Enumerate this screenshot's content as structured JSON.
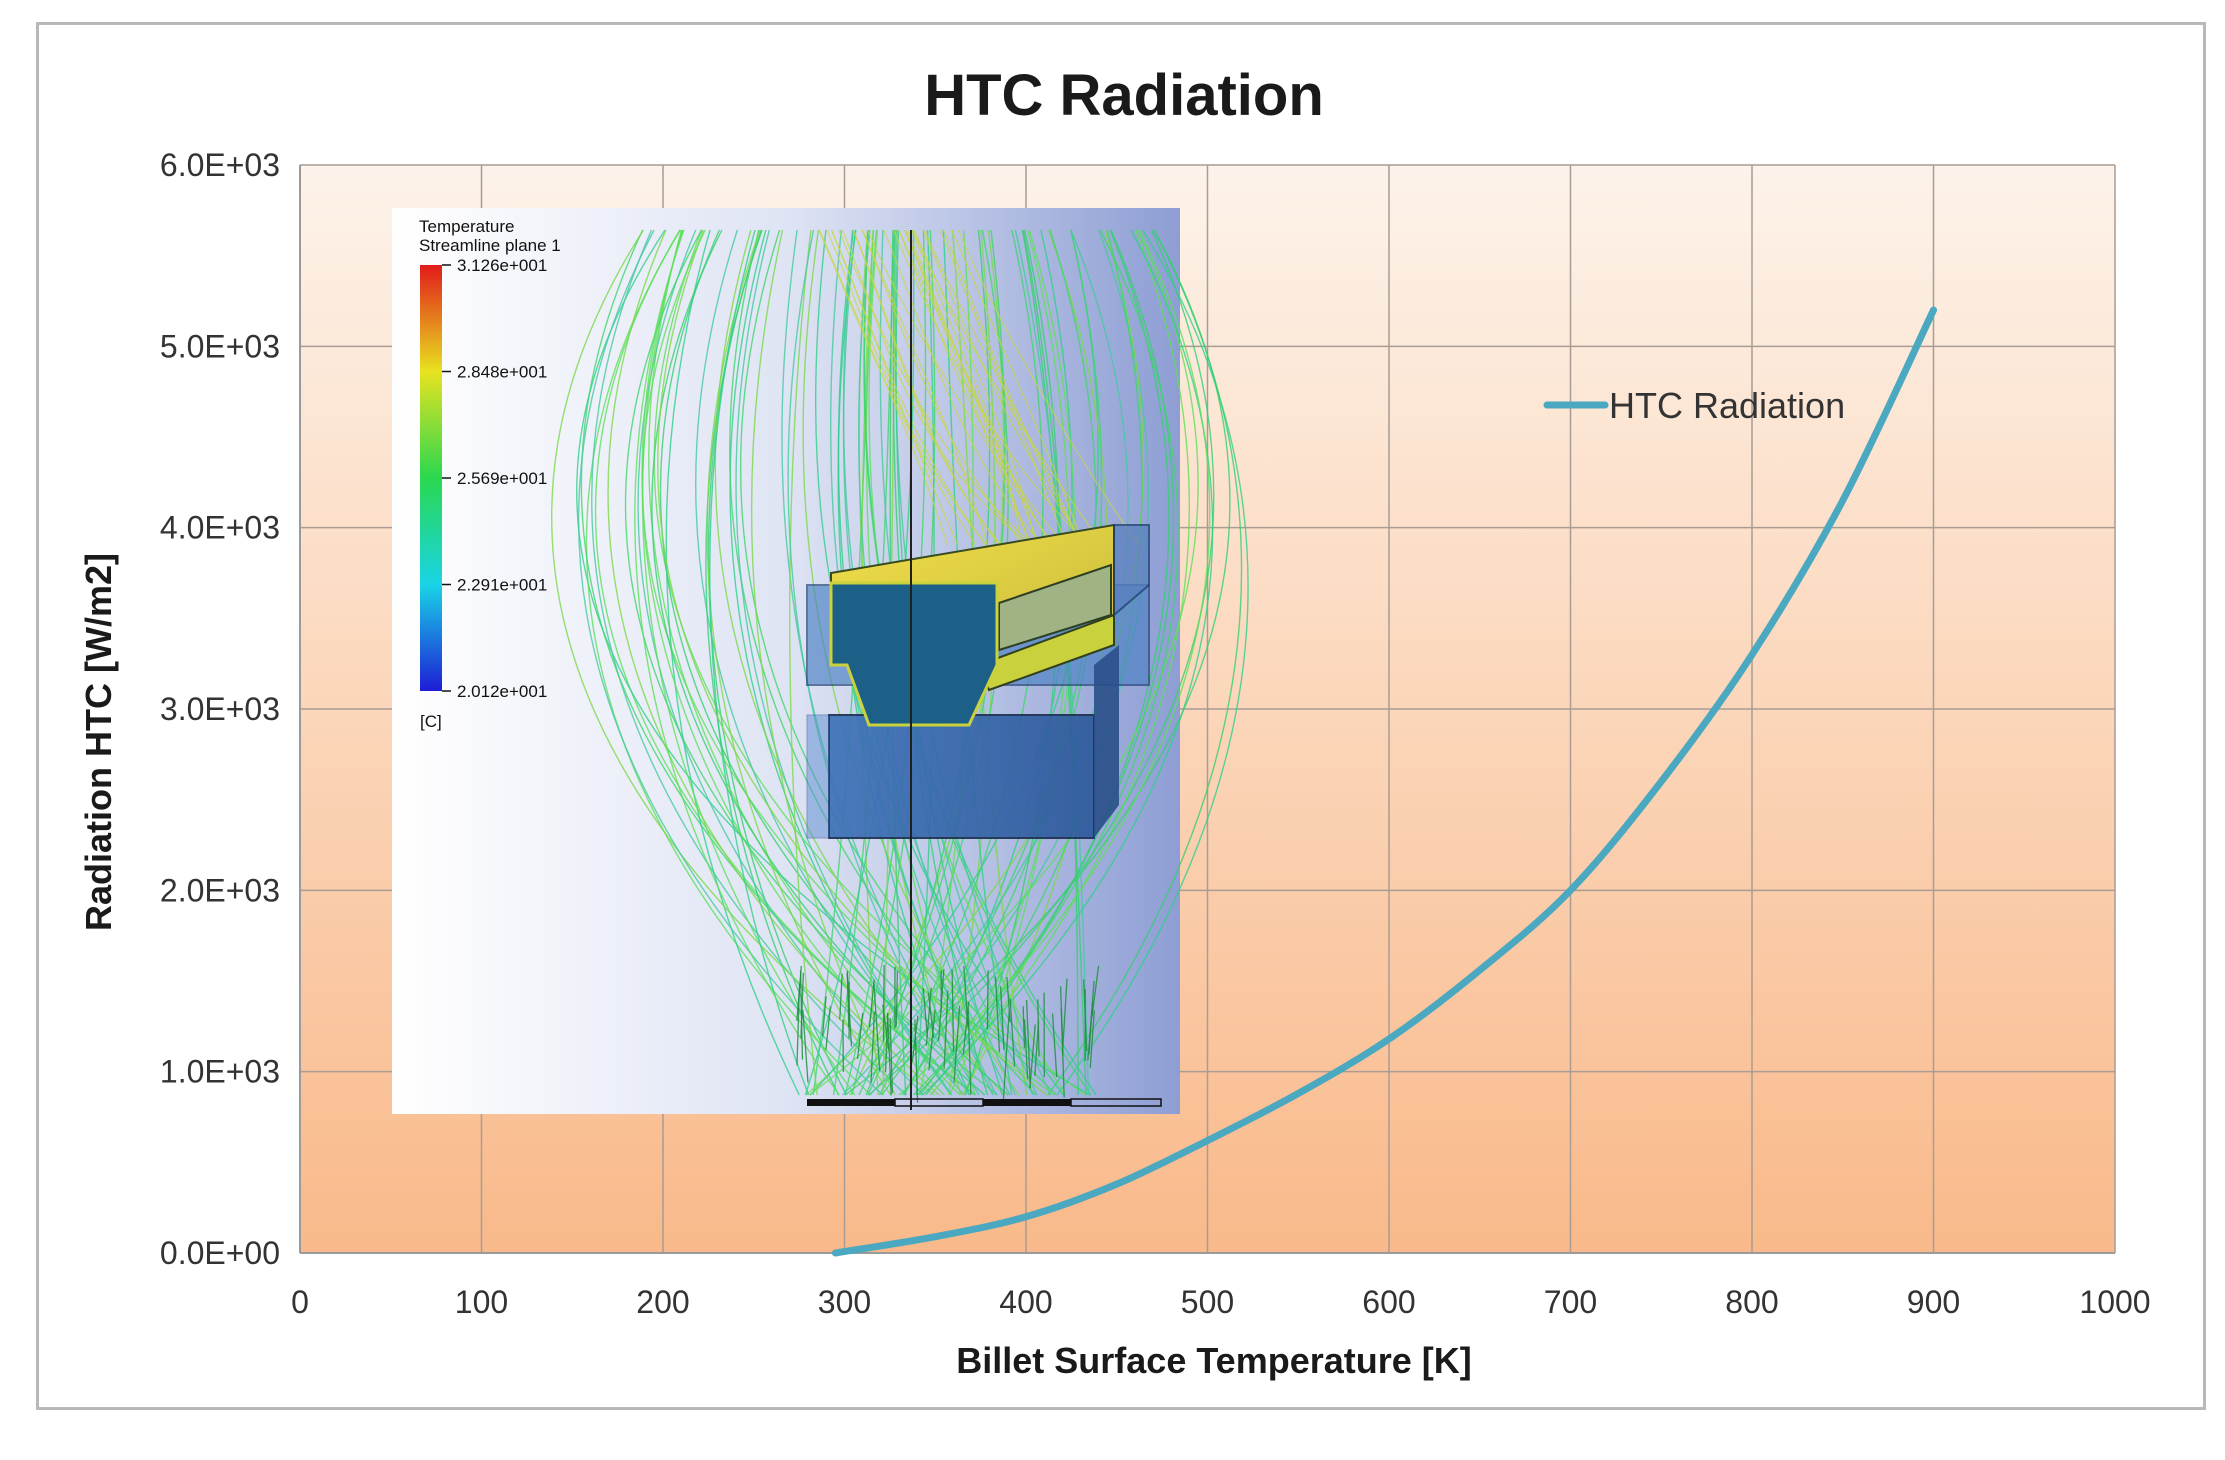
{
  "chart_data": {
    "type": "line",
    "title": "HTC Radiation",
    "xlabel": "Billet Surface Temperature [K]",
    "ylabel": "Radiation HTC [W/m2]",
    "xlim": [
      0,
      1000
    ],
    "ylim": [
      0,
      6000
    ],
    "x_ticks": [
      0,
      100,
      200,
      300,
      400,
      500,
      600,
      700,
      800,
      900,
      1000
    ],
    "x_tick_labels": [
      "0",
      "100",
      "200",
      "300",
      "400",
      "500",
      "600",
      "700",
      "800",
      "900",
      "1000"
    ],
    "y_ticks": [
      0,
      1000,
      2000,
      3000,
      4000,
      5000,
      6000
    ],
    "y_tick_labels": [
      "0.0E+00",
      "1.0E+03",
      "2.0E+03",
      "3.0E+03",
      "4.0E+03",
      "5.0E+03",
      "6.0E+03"
    ],
    "grid": true,
    "legend_position": "top-right",
    "series": [
      {
        "name": "HTC Radiation",
        "color": "#4aa8c0",
        "x": [
          295,
          350,
          400,
          450,
          500,
          550,
          600,
          650,
          700,
          750,
          800,
          850,
          900
        ],
        "y": [
          0,
          90,
          200,
          380,
          620,
          880,
          1180,
          1560,
          2000,
          2600,
          3300,
          4150,
          5200
        ]
      }
    ]
  },
  "inset": {
    "legend_title": "Temperature",
    "legend_subtitle": "Streamline plane 1",
    "legend_values": [
      "3.126e+001",
      "2.848e+001",
      "2.569e+001",
      "2.291e+001",
      "2.012e+001"
    ],
    "legend_unit": "[C]"
  },
  "colors": {
    "plot_gradient_top": "#fdf1e6",
    "plot_gradient_bottom": "#f9b98a",
    "line": "#4aa8c0"
  }
}
